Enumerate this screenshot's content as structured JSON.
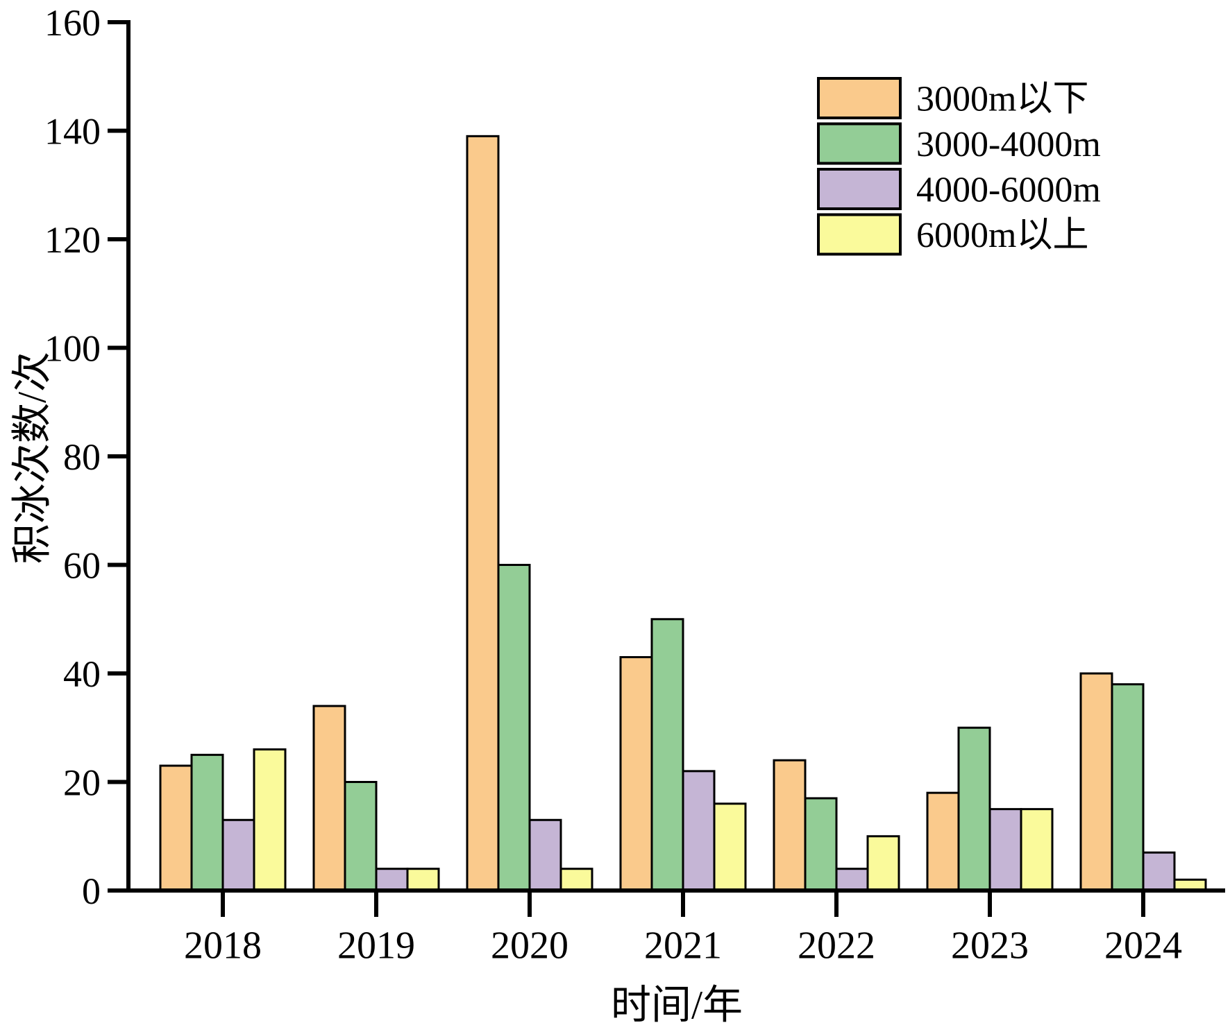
{
  "chart_data": {
    "type": "bar",
    "title": "",
    "xlabel": "时间/年",
    "ylabel": "积冰次数/次",
    "categories": [
      "2018",
      "2019",
      "2020",
      "2021",
      "2022",
      "2023",
      "2024"
    ],
    "series": [
      {
        "name": "3000m以下",
        "color": "#FACA8C",
        "values": [
          23,
          34,
          139,
          43,
          24,
          18,
          40
        ]
      },
      {
        "name": "3000-4000m",
        "color": "#93CD96",
        "values": [
          25,
          20,
          60,
          50,
          17,
          30,
          38
        ]
      },
      {
        "name": "4000-6000m",
        "color": "#C5B5D5",
        "values": [
          13,
          4,
          13,
          22,
          4,
          15,
          7
        ]
      },
      {
        "name": "6000m以上",
        "color": "#FAFA9B",
        "values": [
          26,
          4,
          4,
          16,
          10,
          15,
          2
        ]
      }
    ],
    "ylim": [
      0,
      160
    ],
    "yticks": [
      0,
      20,
      40,
      60,
      80,
      100,
      120,
      140,
      160
    ],
    "legend_position": "upper right",
    "grid": false,
    "axis_color": "#000000",
    "bar_edge_color": "#000000"
  }
}
